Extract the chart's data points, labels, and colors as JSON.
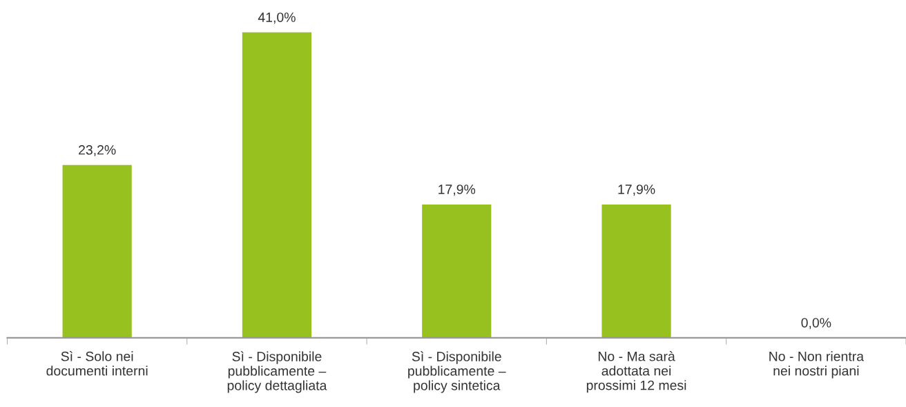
{
  "chart_data": {
    "type": "bar",
    "categories": [
      "Sì - Solo nei\ndocumenti interni",
      "Sì - Disponibile\npubblicamente –\npolicy dettagliata",
      "Sì - Disponibile\npubblicamente –\npolicy sintetica",
      "No - Ma sarà\nadottata nei\nprossimi 12 mesi",
      "No - Non rientra\nnei nostri piani"
    ],
    "values": [
      23.2,
      41.0,
      17.9,
      17.9,
      0.0
    ],
    "value_labels": [
      "23,2%",
      "41,0%",
      "17,9%",
      "17,9%",
      "0,0%"
    ],
    "color": "#96c11f",
    "grid": false,
    "legend": false
  }
}
